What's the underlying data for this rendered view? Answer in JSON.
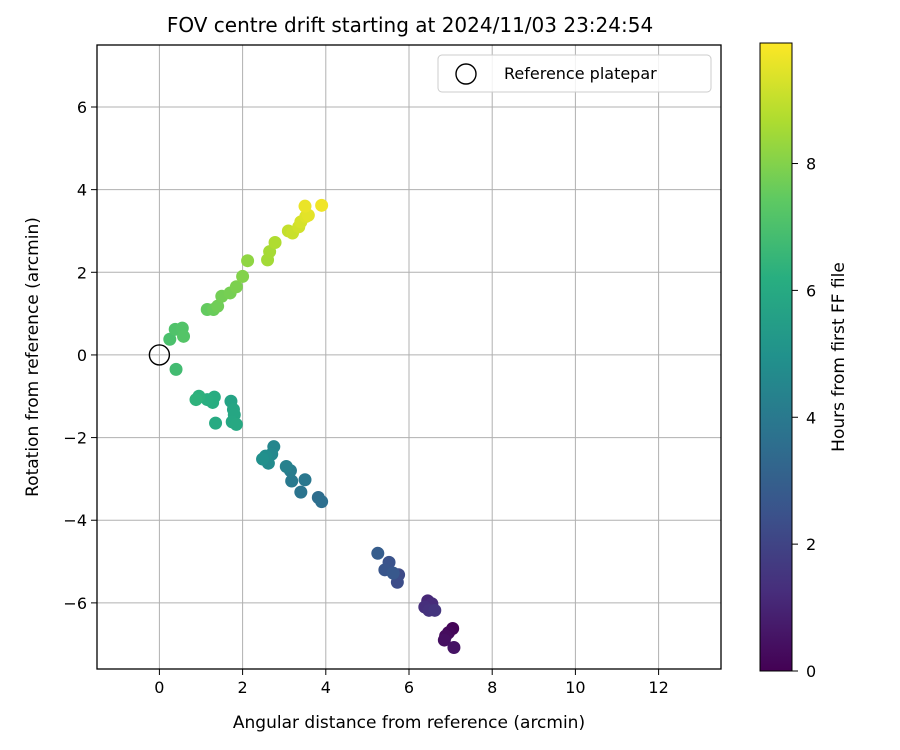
{
  "chart_data": {
    "type": "scatter",
    "title": "FOV centre drift starting at 2024/11/03 23:24:54",
    "xlabel": "Angular distance from reference (arcmin)",
    "ylabel": "Rotation from reference (arcmin)",
    "xlim": [
      -1.5,
      13.5
    ],
    "ylim": [
      -7.6,
      7.5
    ],
    "xticks": [
      0,
      2,
      4,
      6,
      8,
      10,
      12
    ],
    "yticks": [
      -6,
      -4,
      -2,
      0,
      2,
      4,
      6
    ],
    "grid": true,
    "legend": {
      "placement": "top-right",
      "entries": [
        "Reference platepar"
      ]
    },
    "reference_point": {
      "x": 0,
      "y": 0,
      "marker": "open-circle"
    },
    "colorbar": {
      "label": "Hours from first FF file",
      "colormap": "viridis",
      "range": [
        0,
        9.9
      ],
      "ticks": [
        0,
        2,
        4,
        6,
        8
      ]
    },
    "series": [
      {
        "points": [
          {
            "x": 7.05,
            "y": -6.62,
            "c": 0.1
          },
          {
            "x": 6.95,
            "y": -6.72,
            "c": 0.2
          },
          {
            "x": 6.88,
            "y": -6.8,
            "c": 0.3
          },
          {
            "x": 6.85,
            "y": -6.9,
            "c": 0.4
          },
          {
            "x": 7.08,
            "y": -7.08,
            "c": 0.5
          },
          {
            "x": 6.45,
            "y": -5.95,
            "c": 1.1
          },
          {
            "x": 6.55,
            "y": -6.02,
            "c": 1.2
          },
          {
            "x": 6.38,
            "y": -6.1,
            "c": 1.3
          },
          {
            "x": 6.48,
            "y": -6.18,
            "c": 1.4
          },
          {
            "x": 6.62,
            "y": -6.18,
            "c": 1.5
          },
          {
            "x": 5.75,
            "y": -5.32,
            "c": 2.2
          },
          {
            "x": 5.72,
            "y": -5.5,
            "c": 2.3
          },
          {
            "x": 5.52,
            "y": -5.02,
            "c": 2.5
          },
          {
            "x": 5.42,
            "y": -5.2,
            "c": 2.6
          },
          {
            "x": 5.62,
            "y": -5.28,
            "c": 2.7
          },
          {
            "x": 5.25,
            "y": -4.8,
            "c": 2.9
          },
          {
            "x": 3.82,
            "y": -3.45,
            "c": 3.5
          },
          {
            "x": 3.9,
            "y": -3.55,
            "c": 3.6
          },
          {
            "x": 3.4,
            "y": -3.32,
            "c": 3.8
          },
          {
            "x": 3.5,
            "y": -3.02,
            "c": 3.9
          },
          {
            "x": 3.18,
            "y": -3.05,
            "c": 4.0
          },
          {
            "x": 3.15,
            "y": -2.8,
            "c": 4.1
          },
          {
            "x": 3.05,
            "y": -2.7,
            "c": 4.3
          },
          {
            "x": 2.75,
            "y": -2.22,
            "c": 4.5
          },
          {
            "x": 2.7,
            "y": -2.4,
            "c": 4.6
          },
          {
            "x": 2.62,
            "y": -2.62,
            "c": 4.7
          },
          {
            "x": 2.55,
            "y": -2.45,
            "c": 4.8
          },
          {
            "x": 2.48,
            "y": -2.52,
            "c": 4.9
          },
          {
            "x": 1.72,
            "y": -1.12,
            "c": 5.7
          },
          {
            "x": 1.78,
            "y": -1.32,
            "c": 5.8
          },
          {
            "x": 1.8,
            "y": -1.45,
            "c": 5.85
          },
          {
            "x": 1.75,
            "y": -1.62,
            "c": 5.9
          },
          {
            "x": 1.85,
            "y": -1.68,
            "c": 5.95
          },
          {
            "x": 1.35,
            "y": -1.65,
            "c": 6.0
          },
          {
            "x": 1.32,
            "y": -1.02,
            "c": 6.1
          },
          {
            "x": 1.28,
            "y": -1.15,
            "c": 6.15
          },
          {
            "x": 1.15,
            "y": -1.08,
            "c": 6.2
          },
          {
            "x": 0.95,
            "y": -1.0,
            "c": 6.3
          },
          {
            "x": 0.88,
            "y": -1.08,
            "c": 6.35
          },
          {
            "x": 0.4,
            "y": -0.35,
            "c": 6.8
          },
          {
            "x": 0.25,
            "y": 0.38,
            "c": 7.0
          },
          {
            "x": 0.38,
            "y": 0.62,
            "c": 7.1
          },
          {
            "x": 0.55,
            "y": 0.65,
            "c": 7.15
          },
          {
            "x": 0.58,
            "y": 0.45,
            "c": 7.2
          },
          {
            "x": 1.15,
            "y": 1.1,
            "c": 7.5
          },
          {
            "x": 1.3,
            "y": 1.1,
            "c": 7.6
          },
          {
            "x": 1.4,
            "y": 1.18,
            "c": 7.7
          },
          {
            "x": 1.5,
            "y": 1.42,
            "c": 7.75
          },
          {
            "x": 1.7,
            "y": 1.5,
            "c": 7.8
          },
          {
            "x": 1.85,
            "y": 1.65,
            "c": 7.9
          },
          {
            "x": 2.0,
            "y": 1.9,
            "c": 8.0
          },
          {
            "x": 2.12,
            "y": 2.28,
            "c": 8.2
          },
          {
            "x": 2.6,
            "y": 2.3,
            "c": 8.5
          },
          {
            "x": 2.65,
            "y": 2.5,
            "c": 8.55
          },
          {
            "x": 2.78,
            "y": 2.72,
            "c": 8.7
          },
          {
            "x": 3.1,
            "y": 3.0,
            "c": 9.0
          },
          {
            "x": 3.2,
            "y": 2.95,
            "c": 9.1
          },
          {
            "x": 3.35,
            "y": 3.1,
            "c": 9.2
          },
          {
            "x": 3.4,
            "y": 3.22,
            "c": 9.3
          },
          {
            "x": 3.52,
            "y": 3.35,
            "c": 9.4
          },
          {
            "x": 3.58,
            "y": 3.38,
            "c": 9.5
          },
          {
            "x": 3.5,
            "y": 3.6,
            "c": 9.6
          },
          {
            "x": 3.9,
            "y": 3.62,
            "c": 9.7
          }
        ]
      }
    ]
  }
}
